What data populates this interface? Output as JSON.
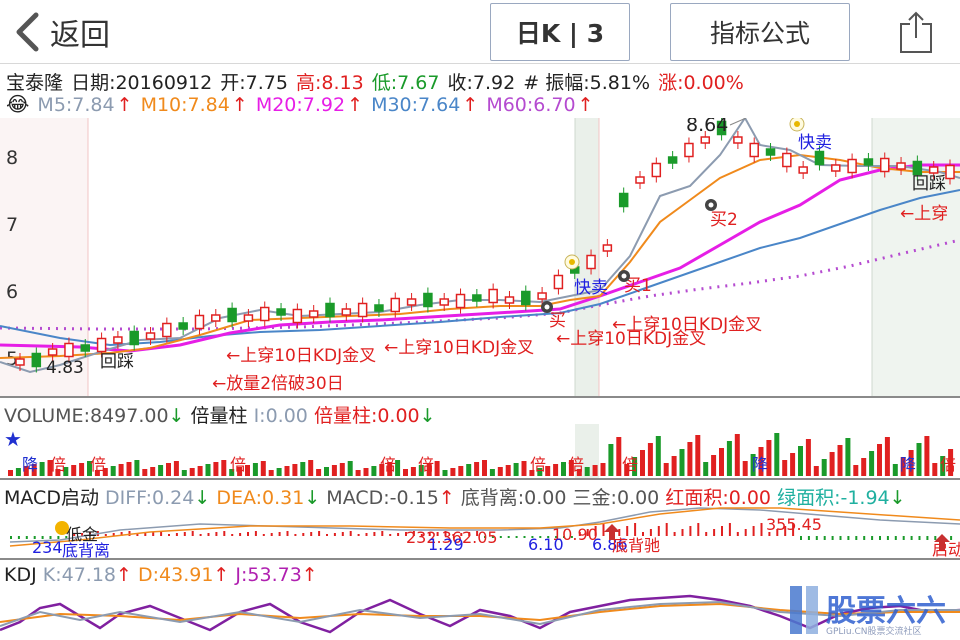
{
  "header": {
    "back_label": "返回",
    "kline_label": "日K | 3",
    "formula_label": "指标公式"
  },
  "quote": {
    "name": "宝泰隆",
    "date": "日期:20160912",
    "open": "开:7.75",
    "high": "高:8.13",
    "low": "低:7.67",
    "close": "收:7.92",
    "amp": "# 振幅:5.81%",
    "change": "涨:0.00%"
  },
  "ma": {
    "m5": "M5:7.84",
    "m10": "M10:7.84",
    "m20": "M20:7.92",
    "m30": "M30:7.64",
    "m60": "M60:6.70",
    "colors": {
      "m5": "#8c9bb0",
      "m10": "#f08a1c",
      "m20": "#e61ee6",
      "m30": "#4a86c8",
      "m60": "#b54bd0"
    }
  },
  "main_chart": {
    "y_ticks": [
      "8",
      "7",
      "6",
      "5"
    ],
    "peak_label": "8.64",
    "low_label": "4.83",
    "signals": {
      "huicai1": "回踩",
      "huicai2": "回踩",
      "kuaimai1": "快卖",
      "kuaimai2": "快卖",
      "mai1": "买1",
      "mai2": "买2",
      "mai": "买"
    },
    "annotations": {
      "a1": "←上穿10日KDJ金叉",
      "a2": "←上穿10日KDJ金叉",
      "a3": "←上穿10日KDJ金叉",
      "a4": "←上穿10日KDJ金叉",
      "a5": "←放量2倍破30日",
      "a6": "←上穿"
    }
  },
  "volume": {
    "title": "VOLUME:8497.00",
    "bei_title": "倍量柱",
    "i_value": "I:0.00",
    "bei_value": "倍量柱:0.00",
    "bei_mark": "倍",
    "jiang_mark": "降"
  },
  "macd": {
    "title": "MACD启动",
    "diff": "DIFF:0.24",
    "dea": "DEA:0.31",
    "macd": "MACD:-0.15",
    "dibeili": "底背离:0.00",
    "sanjin": "三金:0.00",
    "hong": "红面积:0.00",
    "lv": "绿面积:-1.94",
    "labels": {
      "v1": "234",
      "v2": "232.362.05",
      "v3": "1.29",
      "v4": "10.90",
      "v5": "6.10",
      "v6": "6.86",
      "v7": "355.45",
      "t1": "低金",
      "t2": "底背离",
      "t3": "底背驰",
      "t4": "启动"
    }
  },
  "kdj": {
    "title": "KDJ",
    "k": "K:47.18",
    "d": "D:43.91",
    "j": "J:53.73"
  },
  "watermark": {
    "text": "股票六六",
    "sub": "GPLiu.CN股票交流社区"
  }
}
